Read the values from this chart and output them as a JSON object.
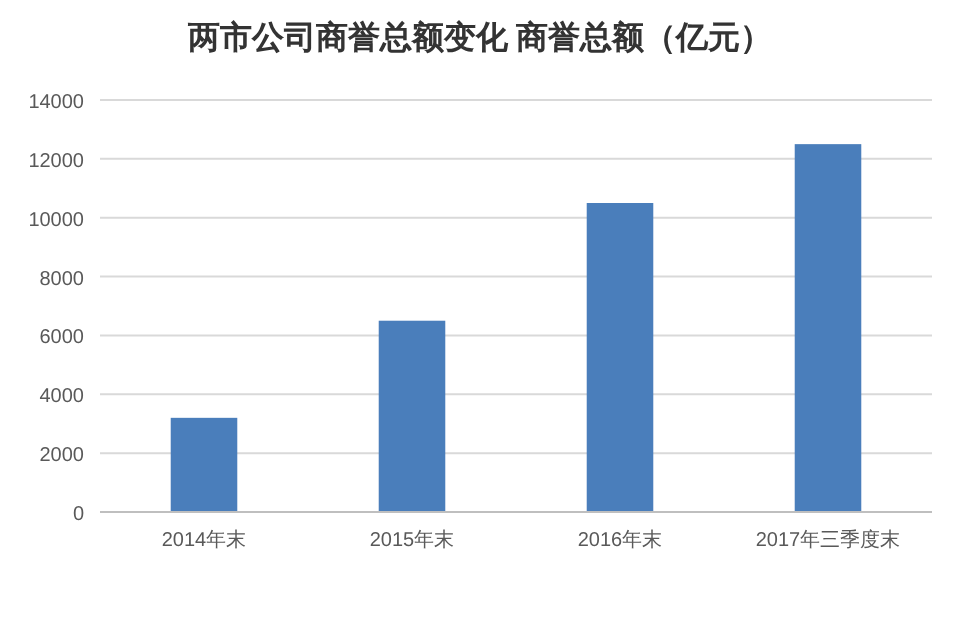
{
  "chart_data": {
    "type": "bar",
    "title": "两市公司商誉总额变化 商誉总额（亿元）",
    "categories": [
      "2014年末",
      "2015年末",
      "2016年末",
      "2017年三季度末"
    ],
    "series": [
      {
        "color": "#4a7ebb",
        "values": [
          3200,
          6500,
          10500,
          12500
        ]
      }
    ],
    "ylim": [
      0,
      14000
    ],
    "yticks": [
      0,
      2000,
      4000,
      6000,
      8000,
      10000,
      12000,
      14000
    ],
    "grid": "y"
  }
}
